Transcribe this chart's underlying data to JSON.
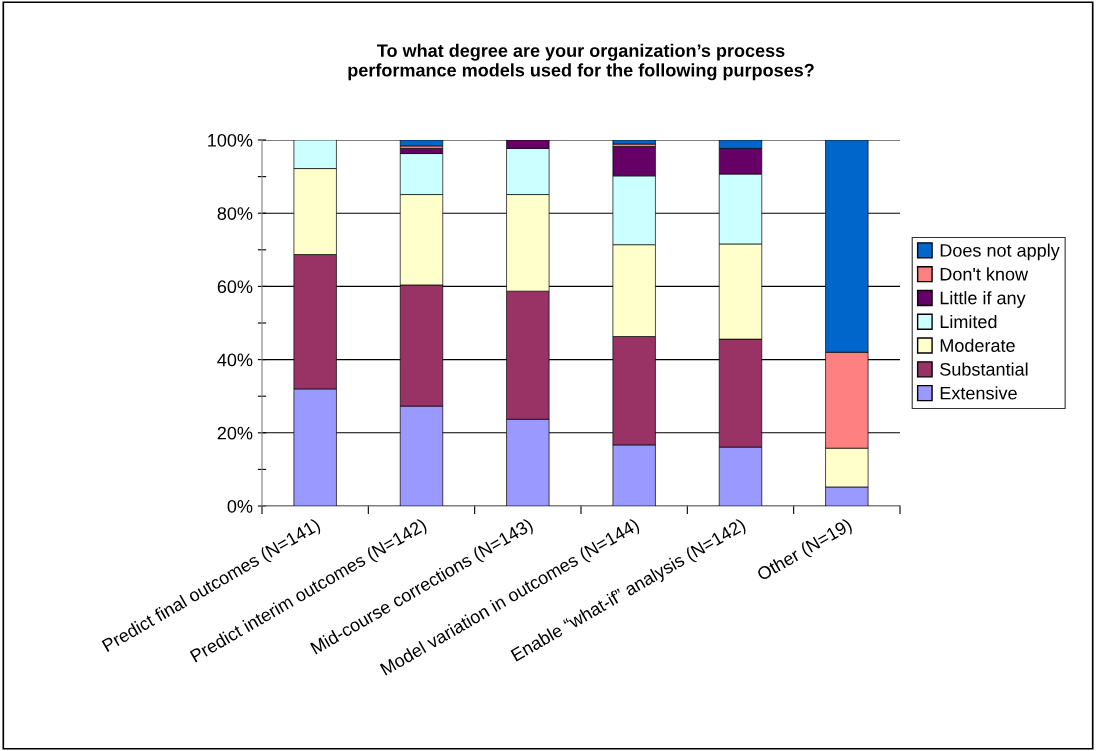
{
  "chart_data": {
    "type": "bar",
    "stacked": true,
    "title": "To what degree are your organization’s process\nperformance models used for the following purposes?",
    "categories": [
      "Predict final outcomes (N=141)",
      "Predict interim outcomes (N=142)",
      "Mid-course corrections (N=143)",
      "Model variation in outcomes (N=144)",
      "Enable “what-if” analysis (N=142)",
      "Other (N=19)"
    ],
    "series": [
      {
        "name": "Extensive",
        "color": "#9999ff",
        "values": [
          32.0,
          27.3,
          23.7,
          16.7,
          16.1,
          5.2
        ]
      },
      {
        "name": "Substantial",
        "color": "#993366",
        "values": [
          36.7,
          33.1,
          35.0,
          29.6,
          29.5,
          null
        ]
      },
      {
        "name": "Moderate",
        "color": "#ffffcc",
        "values": [
          23.5,
          24.7,
          26.4,
          25.1,
          26.0,
          10.6
        ]
      },
      {
        "name": "Limited",
        "color": "#ccffff",
        "values": [
          7.8,
          11.2,
          12.6,
          18.8,
          19.1,
          null
        ]
      },
      {
        "name": "Little if any",
        "color": "#660066",
        "values": [
          null,
          1.4,
          2.3,
          8.0,
          7.0,
          null
        ]
      },
      {
        "name": "Don't know",
        "color": "#ff8080",
        "values": [
          null,
          0.7,
          null,
          0.7,
          null,
          26.2
        ]
      },
      {
        "name": "Does not apply",
        "color": "#0066cc",
        "values": [
          null,
          1.6,
          null,
          1.1,
          2.3,
          58.0
        ]
      }
    ],
    "ylim": [
      0,
      100
    ],
    "yticks": [
      {
        "value": 0,
        "label": "0%"
      },
      {
        "value": 10,
        "label": null
      },
      {
        "value": 20,
        "label": "20%"
      },
      {
        "value": 30,
        "label": null
      },
      {
        "value": 40,
        "label": "40%"
      },
      {
        "value": 50,
        "label": null
      },
      {
        "value": 60,
        "label": "60%"
      },
      {
        "value": 70,
        "label": null
      },
      {
        "value": 80,
        "label": "80%"
      },
      {
        "value": 90,
        "label": null
      },
      {
        "value": 100,
        "label": "100%"
      }
    ],
    "grid": "y",
    "legend": "right"
  }
}
